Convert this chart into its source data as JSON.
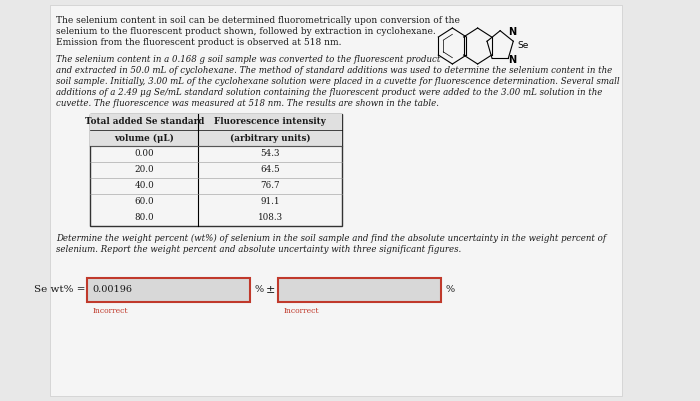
{
  "bg_color": "#e8e8e8",
  "panel_color": "#f5f5f5",
  "text_color": "#1a1a1a",
  "title_lines": [
    "The selenium content in soil can be determined fluorometrically upon conversion of the",
    "selenium to the fluorescent product shown, followed by extraction in cyclohexane.",
    "Emission from the fluorescent product is observed at 518 nm."
  ],
  "body_lines": [
    "The selenium content in a 0.168 g soil sample was converted to the fluorescent product",
    "and extracted in 50.0 mL of cyclohexane. The method of standard additions was used to determine the selenium content in the",
    "soil sample. Initially, 3.00 mL of the cyclohexane solution were placed in a cuvette for fluorescence determination. Several small",
    "additions of a 2.49 μg Se/mL standard solution containing the fluorescent product were added to the 3.00 mL solution in the",
    "cuvette. The fluorescence was measured at 518 nm. The results are shown in the table."
  ],
  "table_header_col1": [
    "Total added Se standard",
    "volume (μL)"
  ],
  "table_header_col2": [
    "Fluorescence intensity",
    "(arbitrary units)"
  ],
  "table_volumes": [
    "0.00",
    "20.0",
    "40.0",
    "60.0",
    "80.0"
  ],
  "table_fluorescence": [
    "54.3",
    "64.5",
    "76.7",
    "91.1",
    "108.3"
  ],
  "footer_lines": [
    "Determine the weight percent (wt%) of selenium in the soil sample and find the absolute uncertainty in the weight percent of",
    "selenium. Report the weight percent and absolute uncertainty with three significant figures."
  ],
  "answer_label": "Se wt% =",
  "answer_value": "0.00196",
  "answer_unit": "%",
  "pm_symbol": "±",
  "incorrect_text": "Incorrect",
  "answer_box_color_border": "#c0392b",
  "input_box_fill": "#d8d8d8"
}
